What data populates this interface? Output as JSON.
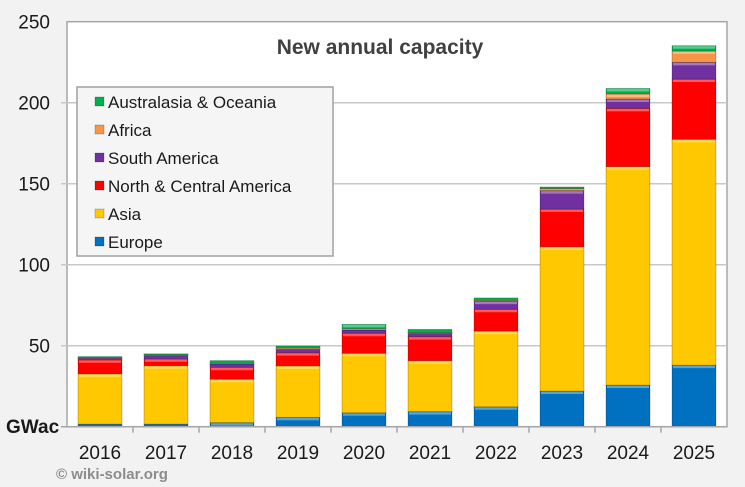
{
  "chart_data": {
    "type": "bar",
    "stacked": true,
    "title": "New annual capacity",
    "ylabel": "GWac",
    "xlabel": "",
    "ylim": [
      0,
      250
    ],
    "yticks": [
      50,
      100,
      150,
      200,
      250
    ],
    "grid": true,
    "legend_position": "top-left",
    "categories": [
      "2016",
      "2017",
      "2018",
      "2019",
      "2020",
      "2021",
      "2022",
      "2023",
      "2024",
      "2025"
    ],
    "series": [
      {
        "name": "Europe",
        "color": "#0070c0",
        "values": [
          1.6,
          1.6,
          2.5,
          5.8,
          8.6,
          9.3,
          12.3,
          22,
          25.7,
          38
        ]
      },
      {
        "name": "Asia",
        "color": "#ffc800",
        "values": [
          31,
          36,
          26.8,
          31.7,
          36.7,
          31.4,
          46.7,
          89,
          134.8,
          139.4
        ]
      },
      {
        "name": "North & Central America",
        "color": "#ff0000",
        "values": [
          8.7,
          4.3,
          7.4,
          8.2,
          12.4,
          14.9,
          13.5,
          23.4,
          36,
          37.2
        ]
      },
      {
        "name": "South America",
        "color": "#7030a0",
        "values": [
          1,
          2,
          2,
          2,
          2,
          2,
          5,
          11.3,
          5.8,
          10.3
        ]
      },
      {
        "name": "Africa",
        "color": "#f79646",
        "values": [
          0.3,
          0.5,
          0.5,
          0.8,
          0.8,
          0.5,
          0.5,
          1.3,
          3.1,
          7
        ]
      },
      {
        "name": "Australasia & Oceania",
        "color": "#00b050",
        "values": [
          0.7,
          0.6,
          1.6,
          1.3,
          2.7,
          2,
          1.5,
          1,
          3.4,
          3.3
        ]
      }
    ]
  },
  "copyright": "© wiki-solar.org"
}
